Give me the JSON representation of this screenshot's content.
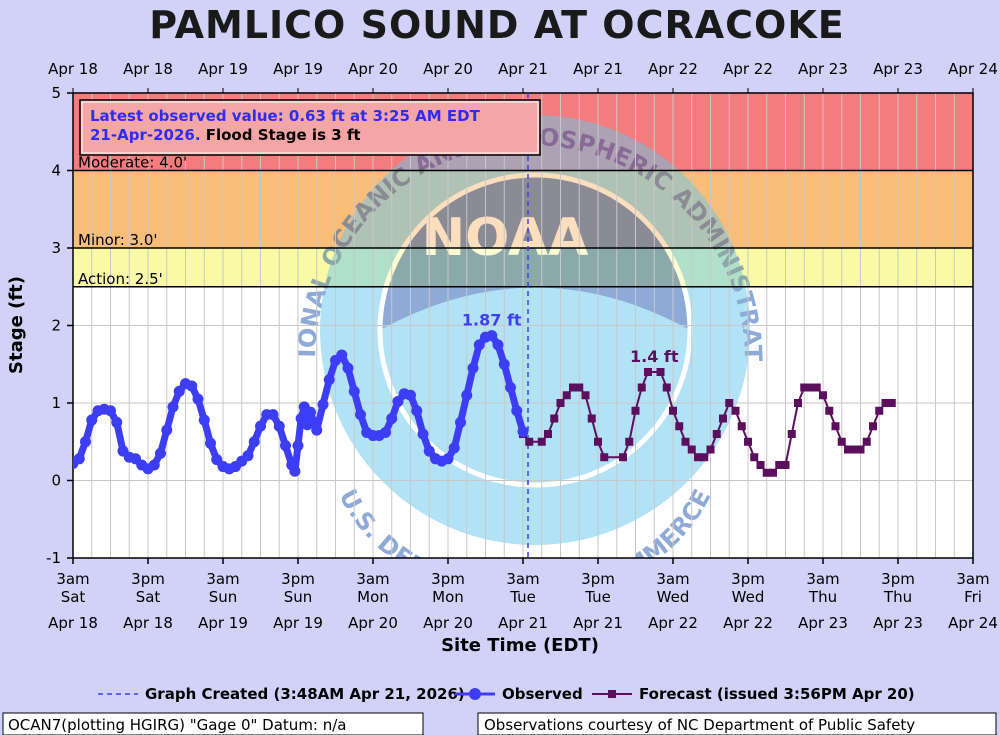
{
  "chart_data": {
    "type": "line",
    "title": "PAMLICO SOUND AT OCRACOKE",
    "xlabel": "Site Time (EDT)",
    "ylabel": "Stage (ft)",
    "ylim": [
      -1,
      5
    ],
    "yticks": [
      -1,
      0,
      1,
      2,
      3,
      4,
      5
    ],
    "x_start": "2026-04-18 03:00",
    "x_end": "2026-04-24 03:00",
    "top_tick_labels": [
      "Apr 18",
      "Apr 18",
      "Apr 19",
      "Apr 19",
      "Apr 20",
      "Apr 20",
      "Apr 21",
      "Apr 21",
      "Apr 22",
      "Apr 22",
      "Apr 23",
      "Apr 23",
      "Apr 24"
    ],
    "bottom_ticks": [
      {
        "time": "3am",
        "day": "Sat",
        "date": "Apr 18"
      },
      {
        "time": "3pm",
        "day": "Sat",
        "date": "Apr 18"
      },
      {
        "time": "3am",
        "day": "Sun",
        "date": "Apr 19"
      },
      {
        "time": "3pm",
        "day": "Sun",
        "date": "Apr 19"
      },
      {
        "time": "3am",
        "day": "Mon",
        "date": "Apr 20"
      },
      {
        "time": "3pm",
        "day": "Mon",
        "date": "Apr 20"
      },
      {
        "time": "3am",
        "day": "Tue",
        "date": "Apr 21"
      },
      {
        "time": "3pm",
        "day": "Tue",
        "date": "Apr 21"
      },
      {
        "time": "3am",
        "day": "Wed",
        "date": "Apr 22"
      },
      {
        "time": "3pm",
        "day": "Wed",
        "date": "Apr 22"
      },
      {
        "time": "3am",
        "day": "Thu",
        "date": "Apr 23"
      },
      {
        "time": "3pm",
        "day": "Thu",
        "date": "Apr 23"
      },
      {
        "time": "3am",
        "day": "Fri",
        "date": "Apr 24"
      }
    ],
    "flood_categories": [
      {
        "label": "Moderate: 4.0'",
        "from": 4.0,
        "to": 5.0,
        "color": "#f47c7c"
      },
      {
        "label": "Minor: 3.0'",
        "from": 3.0,
        "to": 4.0,
        "color": "#f9bd7a"
      },
      {
        "label": "Action: 2.5'",
        "from": 2.5,
        "to": 3.0,
        "color": "#fafaa6"
      }
    ],
    "info_box": {
      "line1": "Latest observed value: 0.63 ft at 3:25 AM EDT",
      "line2_blue": "21-Apr-2026.",
      "line2_black": " Flood Stage is 3 ft"
    },
    "graph_created": "2026-04-21 03:48",
    "observed_peak_label": "1.87 ft",
    "observed_peak": {
      "x": "2026-04-20 22:00",
      "y": 1.87
    },
    "forecast_peak_label": "1.4 ft",
    "forecast_peak": {
      "x": "2026-04-22 00:00",
      "y": 1.4
    },
    "series": [
      {
        "name": "Observed",
        "color": "#3d3df5",
        "points": [
          [
            "2026-04-18 03:00",
            0.22
          ],
          [
            "2026-04-18 04:00",
            0.28
          ],
          [
            "2026-04-18 05:00",
            0.5
          ],
          [
            "2026-04-18 06:00",
            0.78
          ],
          [
            "2026-04-18 07:00",
            0.9
          ],
          [
            "2026-04-18 08:00",
            0.92
          ],
          [
            "2026-04-18 09:00",
            0.9
          ],
          [
            "2026-04-18 10:00",
            0.75
          ],
          [
            "2026-04-18 11:00",
            0.38
          ],
          [
            "2026-04-18 12:00",
            0.3
          ],
          [
            "2026-04-18 13:00",
            0.28
          ],
          [
            "2026-04-18 14:00",
            0.2
          ],
          [
            "2026-04-18 15:00",
            0.15
          ],
          [
            "2026-04-18 16:00",
            0.2
          ],
          [
            "2026-04-18 17:00",
            0.35
          ],
          [
            "2026-04-18 18:00",
            0.65
          ],
          [
            "2026-04-18 19:00",
            0.95
          ],
          [
            "2026-04-18 20:00",
            1.15
          ],
          [
            "2026-04-18 21:00",
            1.25
          ],
          [
            "2026-04-18 22:00",
            1.22
          ],
          [
            "2026-04-18 23:00",
            1.05
          ],
          [
            "2026-04-19 00:00",
            0.78
          ],
          [
            "2026-04-19 01:00",
            0.48
          ],
          [
            "2026-04-19 02:00",
            0.27
          ],
          [
            "2026-04-19 03:00",
            0.18
          ],
          [
            "2026-04-19 04:00",
            0.15
          ],
          [
            "2026-04-19 05:00",
            0.18
          ],
          [
            "2026-04-19 06:00",
            0.25
          ],
          [
            "2026-04-19 07:00",
            0.32
          ],
          [
            "2026-04-19 08:00",
            0.5
          ],
          [
            "2026-04-19 09:00",
            0.7
          ],
          [
            "2026-04-19 10:00",
            0.85
          ],
          [
            "2026-04-19 11:00",
            0.85
          ],
          [
            "2026-04-19 12:00",
            0.7
          ],
          [
            "2026-04-19 13:00",
            0.45
          ],
          [
            "2026-04-19 14:00",
            0.2
          ],
          [
            "2026-04-19 14:30",
            0.12
          ],
          [
            "2026-04-19 15:00",
            0.45
          ],
          [
            "2026-04-19 15:30",
            0.8
          ],
          [
            "2026-04-19 16:00",
            0.95
          ],
          [
            "2026-04-19 16:30",
            0.72
          ],
          [
            "2026-04-19 17:00",
            0.88
          ],
          [
            "2026-04-19 18:00",
            0.65
          ],
          [
            "2026-04-19 19:00",
            0.98
          ],
          [
            "2026-04-19 20:00",
            1.3
          ],
          [
            "2026-04-19 21:00",
            1.55
          ],
          [
            "2026-04-19 22:00",
            1.62
          ],
          [
            "2026-04-19 23:00",
            1.45
          ],
          [
            "2026-04-20 00:00",
            1.15
          ],
          [
            "2026-04-20 01:00",
            0.85
          ],
          [
            "2026-04-20 02:00",
            0.62
          ],
          [
            "2026-04-20 03:00",
            0.58
          ],
          [
            "2026-04-20 04:00",
            0.58
          ],
          [
            "2026-04-20 05:00",
            0.62
          ],
          [
            "2026-04-20 06:00",
            0.8
          ],
          [
            "2026-04-20 07:00",
            1.02
          ],
          [
            "2026-04-20 08:00",
            1.12
          ],
          [
            "2026-04-20 09:00",
            1.1
          ],
          [
            "2026-04-20 10:00",
            0.9
          ],
          [
            "2026-04-20 11:00",
            0.6
          ],
          [
            "2026-04-20 12:00",
            0.38
          ],
          [
            "2026-04-20 13:00",
            0.28
          ],
          [
            "2026-04-20 14:00",
            0.25
          ],
          [
            "2026-04-20 15:00",
            0.28
          ],
          [
            "2026-04-20 16:00",
            0.42
          ],
          [
            "2026-04-20 17:00",
            0.75
          ],
          [
            "2026-04-20 18:00",
            1.1
          ],
          [
            "2026-04-20 19:00",
            1.45
          ],
          [
            "2026-04-20 20:00",
            1.75
          ],
          [
            "2026-04-20 21:00",
            1.85
          ],
          [
            "2026-04-20 22:00",
            1.87
          ],
          [
            "2026-04-20 23:00",
            1.75
          ],
          [
            "2026-04-21 00:00",
            1.5
          ],
          [
            "2026-04-21 01:00",
            1.2
          ],
          [
            "2026-04-21 02:00",
            0.9
          ],
          [
            "2026-04-21 03:00",
            0.63
          ]
        ]
      },
      {
        "name": "Forecast (issued 3:56PM Apr 20)",
        "color": "#5c0f5c",
        "points": [
          [
            "2026-04-21 03:00",
            0.6
          ],
          [
            "2026-04-21 04:00",
            0.5
          ],
          [
            "2026-04-21 06:00",
            0.5
          ],
          [
            "2026-04-21 07:00",
            0.6
          ],
          [
            "2026-04-21 08:00",
            0.8
          ],
          [
            "2026-04-21 09:00",
            1.0
          ],
          [
            "2026-04-21 10:00",
            1.1
          ],
          [
            "2026-04-21 11:00",
            1.2
          ],
          [
            "2026-04-21 12:00",
            1.2
          ],
          [
            "2026-04-21 13:00",
            1.1
          ],
          [
            "2026-04-21 14:00",
            0.8
          ],
          [
            "2026-04-21 15:00",
            0.5
          ],
          [
            "2026-04-21 16:00",
            0.3
          ],
          [
            "2026-04-21 19:00",
            0.3
          ],
          [
            "2026-04-21 20:00",
            0.5
          ],
          [
            "2026-04-21 21:00",
            0.9
          ],
          [
            "2026-04-21 22:00",
            1.2
          ],
          [
            "2026-04-21 23:00",
            1.4
          ],
          [
            "2026-04-22 01:00",
            1.4
          ],
          [
            "2026-04-22 02:00",
            1.2
          ],
          [
            "2026-04-22 03:00",
            0.9
          ],
          [
            "2026-04-22 04:00",
            0.7
          ],
          [
            "2026-04-22 05:00",
            0.5
          ],
          [
            "2026-04-22 06:00",
            0.4
          ],
          [
            "2026-04-22 07:00",
            0.3
          ],
          [
            "2026-04-22 08:00",
            0.3
          ],
          [
            "2026-04-22 09:00",
            0.4
          ],
          [
            "2026-04-22 10:00",
            0.6
          ],
          [
            "2026-04-22 11:00",
            0.8
          ],
          [
            "2026-04-22 12:00",
            1.0
          ],
          [
            "2026-04-22 13:00",
            0.9
          ],
          [
            "2026-04-22 14:00",
            0.7
          ],
          [
            "2026-04-22 15:00",
            0.5
          ],
          [
            "2026-04-22 16:00",
            0.3
          ],
          [
            "2026-04-22 17:00",
            0.2
          ],
          [
            "2026-04-22 18:00",
            0.1
          ],
          [
            "2026-04-22 19:00",
            0.1
          ],
          [
            "2026-04-22 20:00",
            0.2
          ],
          [
            "2026-04-22 21:00",
            0.2
          ],
          [
            "2026-04-22 22:00",
            0.6
          ],
          [
            "2026-04-22 23:00",
            1.0
          ],
          [
            "2026-04-23 00:00",
            1.2
          ],
          [
            "2026-04-23 01:00",
            1.2
          ],
          [
            "2026-04-23 02:00",
            1.2
          ],
          [
            "2026-04-23 03:00",
            1.1
          ],
          [
            "2026-04-23 04:00",
            0.9
          ],
          [
            "2026-04-23 05:00",
            0.7
          ],
          [
            "2026-04-23 06:00",
            0.5
          ],
          [
            "2026-04-23 07:00",
            0.4
          ],
          [
            "2026-04-23 08:00",
            0.4
          ],
          [
            "2026-04-23 09:00",
            0.4
          ],
          [
            "2026-04-23 10:00",
            0.5
          ],
          [
            "2026-04-23 11:00",
            0.7
          ],
          [
            "2026-04-23 12:00",
            0.9
          ],
          [
            "2026-04-23 13:00",
            1.0
          ],
          [
            "2026-04-23 14:00",
            1.0
          ]
        ]
      }
    ],
    "legend": {
      "created": "Graph Created (3:48AM Apr 21, 2026)",
      "observed": "Observed",
      "forecast": "Forecast (issued 3:56PM Apr 20)"
    },
    "footer_left": "OCAN7(plotting HGIRG) \"Gage 0\" Datum: n/a",
    "footer_right": "Observations courtesy of NC Department of Public Safety",
    "watermark": {
      "logo": "NOAA",
      "arc_top": "NATIONAL OCEANIC AND ATMOSPHERIC ADMINISTRATION",
      "arc_bottom": "U.S. DEPARTMENT OF COMMERCE"
    },
    "colors": {
      "page_bg": "#d2d2f8",
      "plot_bg": "#ffffff",
      "grid": "#c8c8c8",
      "info_text_blue": "#2d2df2"
    }
  }
}
